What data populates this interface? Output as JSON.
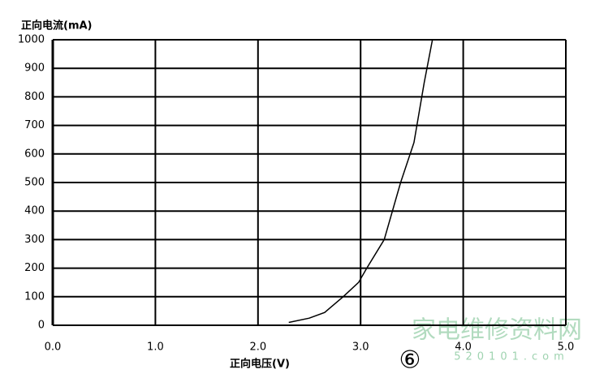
{
  "chart_data": {
    "type": "line",
    "y_label": "正向电流(mA)",
    "x_label": "正向电压(V)",
    "annotation": "⑥",
    "watermark": "家电维修资料网",
    "watermark_url": "520101.com",
    "x": [
      2.3,
      2.5,
      2.65,
      2.83,
      2.98,
      3.06,
      3.23,
      3.39,
      3.52,
      3.62,
      3.7
    ],
    "series": [
      {
        "name": "正向电流",
        "color": "#000000",
        "values": [
          10,
          25,
          45,
          100,
          150,
          200,
          300,
          500,
          640,
          850,
          1000
        ]
      }
    ],
    "xlim": [
      0,
      5
    ],
    "ylim": [
      0,
      1000
    ],
    "xticks": [
      {
        "value": 0,
        "label": "0.0"
      },
      {
        "value": 1,
        "label": "1.0"
      },
      {
        "value": 2,
        "label": "2.0"
      },
      {
        "value": 3,
        "label": "3.0"
      },
      {
        "value": 4,
        "label": "4.0"
      },
      {
        "value": 5,
        "label": "5.0"
      }
    ],
    "yticks": [
      0,
      100,
      200,
      300,
      400,
      500,
      600,
      700,
      800,
      900,
      1000
    ],
    "grid": true
  }
}
